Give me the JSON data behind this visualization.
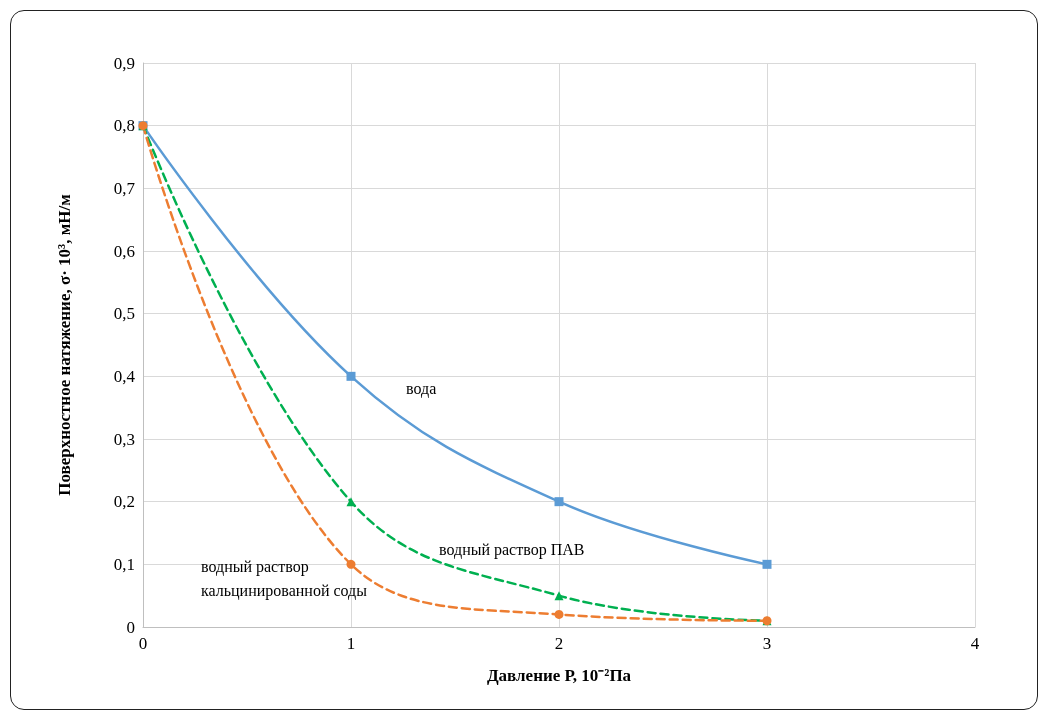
{
  "chart_data": {
    "type": "line",
    "xlabel": "Давление Р, 10⁻²Па",
    "ylabel": "Поверхностное натяжение, σ· 10³, мН/м",
    "x": [
      0,
      1,
      2,
      3
    ],
    "series": [
      {
        "name": "вода",
        "color": "#5b9bd5",
        "values": [
          0.8,
          0.4,
          0.2,
          0.1
        ],
        "marker": "square",
        "line_style": "solid"
      },
      {
        "name": "водный раствор ПАВ",
        "color": "#00b050",
        "values": [
          0.8,
          0.2,
          0.05,
          0.01
        ],
        "marker": "triangle",
        "line_style": "dashed"
      },
      {
        "name": "водный раствор кальцинированной соды",
        "color": "#ed7d31",
        "values": [
          0.8,
          0.1,
          0.02,
          0.01
        ],
        "marker": "circle",
        "line_style": "dashed"
      }
    ],
    "xlim": [
      0,
      4
    ],
    "xticks": [
      0,
      1,
      2,
      3,
      4
    ],
    "ylim": [
      0,
      0.9
    ],
    "yticks": [
      {
        "value": 0,
        "label": "0"
      },
      {
        "value": 0.1,
        "label": "0,1"
      },
      {
        "value": 0.2,
        "label": "0,2"
      },
      {
        "value": 0.3,
        "label": "0,3"
      },
      {
        "value": 0.4,
        "label": "0,4"
      },
      {
        "value": 0.5,
        "label": "0,5"
      },
      {
        "value": 0.6,
        "label": "0,6"
      },
      {
        "value": 0.7,
        "label": "0,7"
      },
      {
        "value": 0.8,
        "label": "0,8"
      },
      {
        "value": 0.9,
        "label": "0,9"
      }
    ],
    "grid": true,
    "legend": false
  }
}
